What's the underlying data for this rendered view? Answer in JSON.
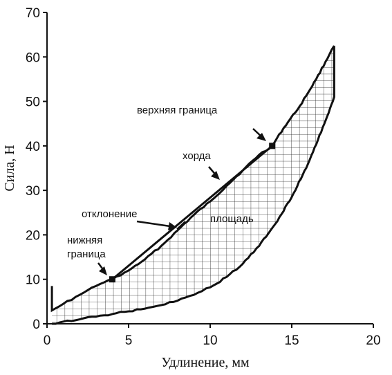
{
  "chart_data": {
    "type": "line",
    "title": "",
    "xlabel": "Удлинение, мм",
    "ylabel": "Сила, Н",
    "xlim": [
      0,
      20
    ],
    "ylim": [
      0,
      70
    ],
    "x_ticks": [
      "0",
      "5",
      "10",
      "15",
      "20"
    ],
    "y_ticks": [
      "0",
      "10",
      "20",
      "30",
      "40",
      "50",
      "60",
      "70"
    ],
    "grid": false,
    "legend": "none",
    "series": [
      {
        "name": "",
        "x": [
          0.3,
          0.3,
          1.0,
          2.0,
          3.0,
          4.0,
          5.0,
          6.0,
          7.0,
          8.0,
          9.0,
          10.0,
          11.0,
          12.0,
          13.0,
          13.8,
          14.5,
          15.5,
          16.5,
          17.3,
          17.6
        ],
        "y": [
          8.5,
          3.0,
          4.5,
          6.5,
          8.5,
          10.0,
          12.0,
          14.5,
          17.5,
          21.0,
          24.5,
          27.5,
          31.0,
          34.5,
          38.0,
          40.0,
          44.0,
          49.0,
          55.0,
          60.5,
          62.5
        ]
      },
      {
        "name": "",
        "x": [
          0.3,
          1.0,
          2.0,
          3.0,
          4.0,
          5.0,
          6.0,
          7.0,
          8.0,
          9.0,
          10.0,
          11.0,
          12.0,
          13.0,
          14.0,
          15.0,
          16.0,
          17.0,
          17.6,
          17.6
        ],
        "y": [
          0.0,
          0.5,
          1.0,
          1.6,
          2.2,
          2.8,
          3.4,
          4.2,
          5.2,
          6.5,
          8.2,
          10.5,
          13.5,
          17.5,
          22.5,
          28.5,
          36.0,
          45.0,
          51.0,
          62.5
        ]
      }
    ],
    "chord": {
      "x": [
        4.0,
        13.8
      ],
      "y": [
        10.0,
        40.0
      ]
    },
    "annotations": [
      {
        "text": "верхняя граница"
      },
      {
        "text": "хорда"
      },
      {
        "text": "отклонение"
      },
      {
        "text": "площадь"
      },
      {
        "text": "нижняя"
      },
      {
        "text": "граница"
      }
    ]
  }
}
